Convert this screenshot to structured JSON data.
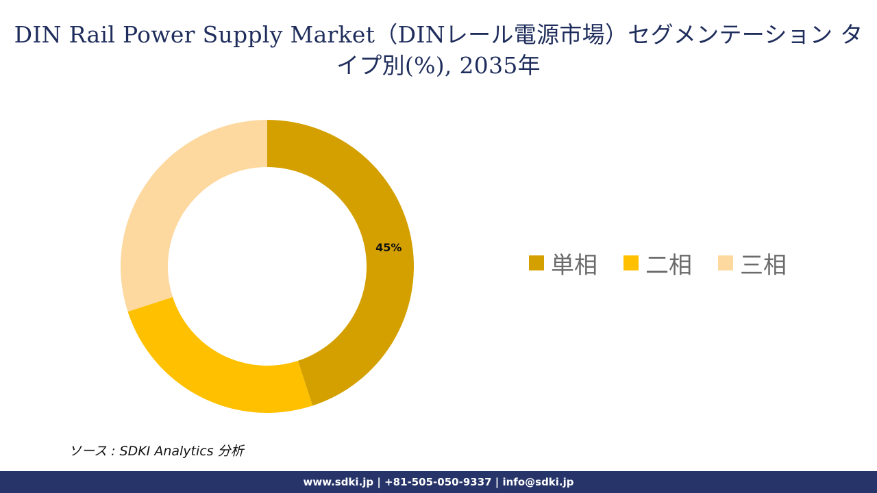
{
  "title": "DIN Rail Power Supply Market（DINレール電源市場）セグメンテーション タイプ別(%), 2035年",
  "chart_data": {
    "type": "pie",
    "variant": "donut",
    "categories": [
      "単相",
      "二相",
      "三相"
    ],
    "values": [
      45,
      25,
      30
    ],
    "colors": [
      "#D4A000",
      "#FFC000",
      "#FDD9A0"
    ],
    "data_labels": [
      "45%",
      "",
      ""
    ],
    "legend_position": "right"
  },
  "source": "ソース : SDKI Analytics 分析",
  "footer": "www.sdki.jp | +81-505-050-9337 | info@sdki.jp"
}
